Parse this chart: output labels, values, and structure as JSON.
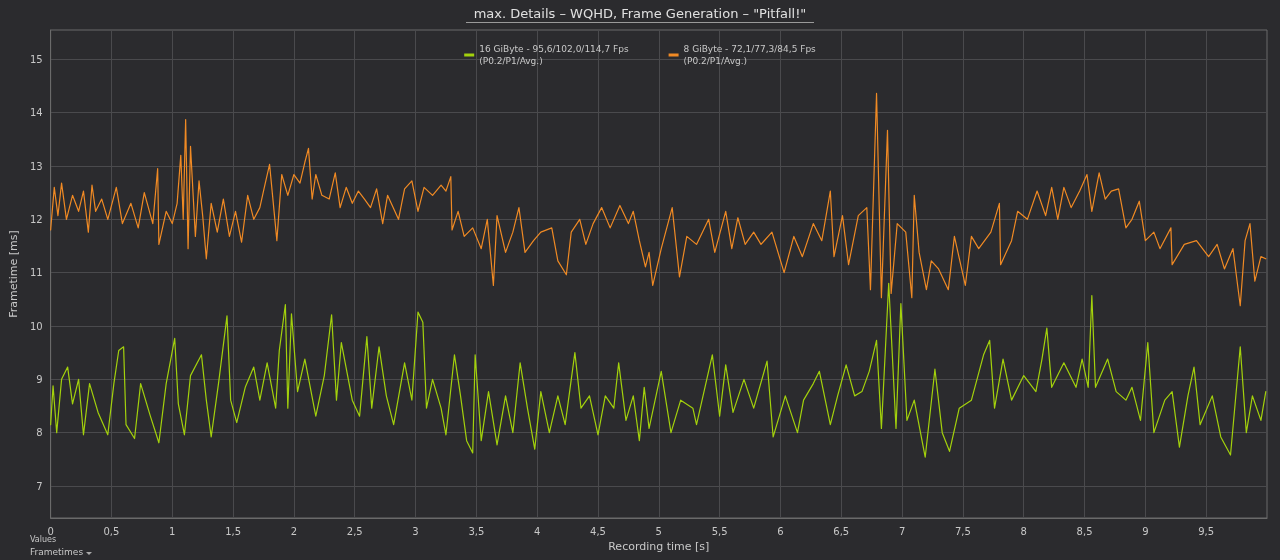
{
  "chart_data": {
    "type": "line",
    "title": "max. Details – WQHD, Frame Generation – \"Pitfall!\"",
    "xlabel": "Recording time [s]",
    "ylabel": "Frametime [ms]",
    "annotations": [
      "Values",
      "Frametimes"
    ],
    "xlim": [
      0,
      10
    ],
    "xticks": [
      0,
      {
        "value": 0.5,
        "label": "0,5"
      },
      1,
      {
        "value": 1.5,
        "label": "1,5"
      },
      2,
      {
        "value": 2.5,
        "label": "2,5"
      },
      3,
      {
        "value": 3.5,
        "label": "3,5"
      },
      4,
      {
        "value": 4.5,
        "label": "4,5"
      },
      5,
      {
        "value": 5.5,
        "label": "5,5"
      },
      6,
      {
        "value": 6.5,
        "label": "6,5"
      },
      7,
      {
        "value": 7.5,
        "label": "7,5"
      },
      8,
      {
        "value": 8.5,
        "label": "8,5"
      },
      9,
      {
        "value": 9.5,
        "label": "9,5"
      }
    ],
    "ylim": [
      6.4,
      15.55
    ],
    "yticks": [
      7,
      8,
      9,
      10,
      11,
      12,
      13,
      14,
      15
    ],
    "grid": true,
    "legend": "top",
    "marker": "none",
    "line_style": "solid",
    "series": [
      {
        "name": "16 GiByte - 95,6/102,0/114,7 Fps\n(P0.2/P1/Avg.)",
        "color": "#a3d10c",
        "x": [
          0,
          0.02,
          0.05,
          0.09,
          0.14,
          0.18,
          0.23,
          0.27,
          0.32,
          0.39,
          0.47,
          0.52,
          0.56,
          0.6,
          0.62,
          0.69,
          0.74,
          0.82,
          0.89,
          0.95,
          1.02,
          1.05,
          1.1,
          1.15,
          1.24,
          1.28,
          1.32,
          1.38,
          1.45,
          1.48,
          1.53,
          1.6,
          1.67,
          1.72,
          1.78,
          1.85,
          1.88,
          1.93,
          1.95,
          1.98,
          2.03,
          2.09,
          2.18,
          2.25,
          2.31,
          2.35,
          2.39,
          2.48,
          2.54,
          2.6,
          2.64,
          2.7,
          2.76,
          2.82,
          2.91,
          2.97,
          3.02,
          3.06,
          3.09,
          3.14,
          3.21,
          3.25,
          3.32,
          3.37,
          3.42,
          3.47,
          3.49,
          3.54,
          3.6,
          3.67,
          3.74,
          3.8,
          3.86,
          3.92,
          3.98,
          4.03,
          4.1,
          4.17,
          4.23,
          4.31,
          4.36,
          4.43,
          4.5,
          4.56,
          4.63,
          4.67,
          4.73,
          4.79,
          4.84,
          4.88,
          4.92,
          5.02,
          5.1,
          5.18,
          5.28,
          5.31,
          5.44,
          5.5,
          5.55,
          5.61,
          5.7,
          5.78,
          5.89,
          5.94,
          6.04,
          6.14,
          6.19,
          6.27,
          6.32,
          6.41,
          6.47,
          6.54,
          6.61,
          6.67,
          6.73,
          6.79,
          6.83,
          6.89,
          6.95,
          6.99,
          7.04,
          7.1,
          7.19,
          7.27,
          7.33,
          7.39,
          7.47,
          7.57,
          7.67,
          7.72,
          7.76,
          7.83,
          7.9,
          8,
          8.1,
          8.15,
          8.19,
          8.23,
          8.33,
          8.43,
          8.48,
          8.53,
          8.56,
          8.59,
          8.69,
          8.76,
          8.84,
          8.89,
          8.96,
          9.02,
          9.07,
          9.16,
          9.22,
          9.28,
          9.35,
          9.4,
          9.45,
          9.55,
          9.62,
          9.7,
          9.78,
          9.83,
          9.88,
          9.95,
          9.99
        ],
        "values": [
          8.15,
          8.88,
          8.0,
          9.0,
          9.23,
          8.54,
          9.0,
          7.96,
          8.92,
          8.38,
          7.96,
          8.92,
          9.54,
          9.61,
          8.15,
          7.89,
          8.92,
          8.31,
          7.81,
          8.92,
          9.77,
          8.54,
          7.96,
          9.07,
          9.46,
          8.61,
          7.92,
          8.92,
          10.19,
          8.61,
          8.19,
          8.85,
          9.23,
          8.61,
          9.31,
          8.46,
          9.54,
          10.4,
          8.46,
          10.23,
          8.77,
          9.38,
          8.31,
          9.07,
          10.21,
          8.61,
          9.69,
          8.61,
          8.31,
          9.8,
          8.46,
          9.61,
          8.69,
          8.15,
          9.31,
          8.61,
          10.26,
          10.07,
          8.46,
          9.0,
          8.46,
          7.96,
          9.46,
          8.69,
          7.85,
          7.62,
          9.46,
          7.85,
          8.77,
          7.77,
          8.69,
          8.0,
          9.31,
          8.46,
          7.69,
          8.77,
          8.0,
          8.69,
          8.15,
          9.5,
          8.46,
          8.69,
          7.96,
          8.69,
          8.46,
          9.31,
          8.23,
          8.69,
          7.85,
          8.85,
          8.08,
          9.15,
          8.0,
          8.61,
          8.46,
          8.15,
          9.46,
          8.31,
          9.27,
          8.38,
          9.0,
          8.46,
          9.34,
          7.92,
          8.69,
          8.0,
          8.61,
          8.92,
          9.15,
          8.15,
          8.69,
          9.27,
          8.69,
          8.77,
          9.15,
          9.73,
          8.08,
          10.8,
          8.08,
          10.42,
          8.23,
          8.61,
          7.54,
          9.19,
          8.0,
          7.65,
          8.46,
          8.61,
          9.46,
          9.73,
          8.46,
          9.38,
          8.61,
          9.07,
          8.77,
          9.38,
          9.96,
          8.85,
          9.31,
          8.85,
          9.38,
          8.85,
          10.57,
          8.85,
          9.38,
          8.77,
          8.61,
          8.85,
          8.23,
          9.69,
          8.0,
          8.61,
          8.77,
          7.73,
          8.69,
          9.23,
          8.15,
          8.69,
          7.92,
          7.58,
          9.61,
          8.0,
          8.69,
          8.23,
          8.77
        ]
      },
      {
        "name": "8 GiByte - 72,1/77,3/84,5 Fps\n(P0.2/P1/Avg.)",
        "color": "#f08a24",
        "x": [
          0,
          0.03,
          0.06,
          0.09,
          0.13,
          0.18,
          0.23,
          0.27,
          0.31,
          0.34,
          0.37,
          0.42,
          0.47,
          0.54,
          0.59,
          0.66,
          0.72,
          0.77,
          0.84,
          0.88,
          0.89,
          0.95,
          1.0,
          1.04,
          1.07,
          1.09,
          1.11,
          1.13,
          1.15,
          1.19,
          1.22,
          1.25,
          1.28,
          1.32,
          1.37,
          1.42,
          1.47,
          1.52,
          1.57,
          1.62,
          1.67,
          1.72,
          1.75,
          1.8,
          1.86,
          1.9,
          1.95,
          2.0,
          2.05,
          2.09,
          2.12,
          2.15,
          2.18,
          2.23,
          2.29,
          2.34,
          2.38,
          2.43,
          2.48,
          2.53,
          2.58,
          2.63,
          2.68,
          2.73,
          2.77,
          2.86,
          2.91,
          2.97,
          3.02,
          3.07,
          3.14,
          3.21,
          3.25,
          3.29,
          3.3,
          3.35,
          3.4,
          3.47,
          3.54,
          3.59,
          3.64,
          3.67,
          3.74,
          3.8,
          3.85,
          3.9,
          3.97,
          4.03,
          4.12,
          4.17,
          4.24,
          4.28,
          4.35,
          4.4,
          4.46,
          4.53,
          4.6,
          4.68,
          4.75,
          4.79,
          4.84,
          4.89,
          4.92,
          4.95,
          5.02,
          5.11,
          5.17,
          5.23,
          5.31,
          5.41,
          5.46,
          5.55,
          5.6,
          5.65,
          5.71,
          5.78,
          5.84,
          5.93,
          6.03,
          6.11,
          6.18,
          6.27,
          6.34,
          6.41,
          6.44,
          6.51,
          6.56,
          6.64,
          6.71,
          6.74,
          6.79,
          6.83,
          6.88,
          6.91,
          6.96,
          7.03,
          7.08,
          7.1,
          7.14,
          7.2,
          7.24,
          7.3,
          7.38,
          7.43,
          7.52,
          7.57,
          7.63,
          7.73,
          7.8,
          7.81,
          7.9,
          7.95,
          8.03,
          8.11,
          8.18,
          8.23,
          8.28,
          8.33,
          8.39,
          8.46,
          8.52,
          8.56,
          8.62,
          8.67,
          8.72,
          8.78,
          8.84,
          8.89,
          8.95,
          9.0,
          9.07,
          9.12,
          9.21,
          9.22,
          9.32,
          9.42,
          9.52,
          9.59,
          9.65,
          9.72,
          9.78,
          9.82,
          9.86,
          9.9,
          9.95,
          9.99
        ],
        "values": [
          11.8,
          12.6,
          12.07,
          12.68,
          12.0,
          12.45,
          12.15,
          12.53,
          11.76,
          12.64,
          12.15,
          12.38,
          12.0,
          12.6,
          11.92,
          12.3,
          11.84,
          12.5,
          11.92,
          12.95,
          11.53,
          12.15,
          11.92,
          12.3,
          13.2,
          12.0,
          13.87,
          11.45,
          13.37,
          11.68,
          12.72,
          12.07,
          11.26,
          12.3,
          11.76,
          12.38,
          11.68,
          12.15,
          11.57,
          12.45,
          12.0,
          12.22,
          12.53,
          13.03,
          11.6,
          12.84,
          12.45,
          12.84,
          12.68,
          13.07,
          13.33,
          12.38,
          12.84,
          12.45,
          12.38,
          12.87,
          12.22,
          12.6,
          12.3,
          12.53,
          12.38,
          12.22,
          12.57,
          11.92,
          12.45,
          12.0,
          12.57,
          12.72,
          12.15,
          12.6,
          12.45,
          12.64,
          12.53,
          12.8,
          11.8,
          12.15,
          11.68,
          11.84,
          11.45,
          12.0,
          10.76,
          12.07,
          11.38,
          11.76,
          12.22,
          11.38,
          11.6,
          11.76,
          11.84,
          11.22,
          10.96,
          11.76,
          12.0,
          11.53,
          11.92,
          12.22,
          11.84,
          12.26,
          11.92,
          12.15,
          11.6,
          11.11,
          11.38,
          10.76,
          11.45,
          12.22,
          10.92,
          11.68,
          11.53,
          12.0,
          11.38,
          12.15,
          11.45,
          12.03,
          11.53,
          11.76,
          11.53,
          11.76,
          11.0,
          11.68,
          11.3,
          11.92,
          11.6,
          12.53,
          11.3,
          12.07,
          11.15,
          12.07,
          12.22,
          10.68,
          14.36,
          10.53,
          13.67,
          10.61,
          11.92,
          11.76,
          10.53,
          12.45,
          11.38,
          10.68,
          11.22,
          11.07,
          10.68,
          11.68,
          10.76,
          11.68,
          11.45,
          11.76,
          12.3,
          11.15,
          11.6,
          12.15,
          12.0,
          12.53,
          12.07,
          12.6,
          12.0,
          12.6,
          12.22,
          12.53,
          12.84,
          12.15,
          12.87,
          12.38,
          12.53,
          12.57,
          11.84,
          12.0,
          12.34,
          11.6,
          11.76,
          11.45,
          11.84,
          11.15,
          11.53,
          11.6,
          11.3,
          11.53,
          11.07,
          11.45,
          10.38,
          11.6,
          11.92,
          10.84,
          11.3,
          11.26
        ]
      }
    ]
  }
}
